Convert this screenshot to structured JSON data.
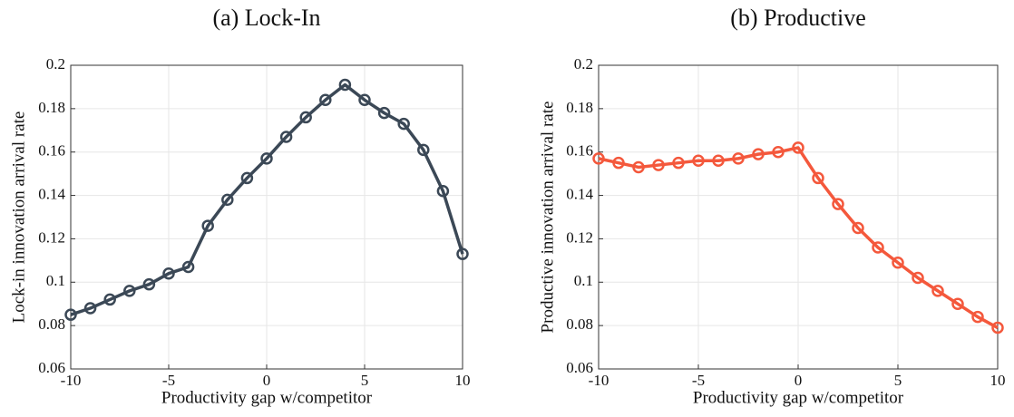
{
  "chart_data": [
    {
      "type": "line",
      "title": "(a) Lock-In",
      "xlabel": "Productivity gap w/competitor",
      "ylabel": "Lock-in innovation arrival rate",
      "x": [
        -10,
        -9,
        -8,
        -7,
        -6,
        -5,
        -4,
        -3,
        -2,
        -1,
        0,
        1,
        2,
        3,
        4,
        5,
        6,
        7,
        8,
        9,
        10
      ],
      "series": [
        {
          "color": "#3b4856",
          "values": [
            0.085,
            0.088,
            0.092,
            0.096,
            0.099,
            0.104,
            0.107,
            0.126,
            0.138,
            0.148,
            0.157,
            0.167,
            0.176,
            0.184,
            0.191,
            0.184,
            0.178,
            0.173,
            0.161,
            0.142,
            0.113
          ]
        }
      ],
      "xlim": [
        -10,
        10
      ],
      "ylim": [
        0.06,
        0.2
      ],
      "xticks": [
        -10,
        -5,
        0,
        5,
        10
      ],
      "yticks": [
        0.06,
        0.08,
        0.1,
        0.12,
        0.14,
        0.16,
        0.18,
        0.2
      ],
      "grid": true
    },
    {
      "type": "line",
      "title": "(b) Productive",
      "xlabel": "Productivity gap w/competitor",
      "ylabel": "Productive innovation arrival rate",
      "x": [
        -10,
        -9,
        -8,
        -7,
        -6,
        -5,
        -4,
        -3,
        -2,
        -1,
        0,
        1,
        2,
        3,
        4,
        5,
        6,
        7,
        8,
        9,
        10
      ],
      "series": [
        {
          "color": "#f4583c",
          "values": [
            0.157,
            0.155,
            0.153,
            0.154,
            0.155,
            0.156,
            0.156,
            0.157,
            0.159,
            0.16,
            0.162,
            0.148,
            0.136,
            0.125,
            0.116,
            0.109,
            0.102,
            0.096,
            0.09,
            0.084,
            0.079
          ]
        }
      ],
      "xlim": [
        -10,
        10
      ],
      "ylim": [
        0.06,
        0.2
      ],
      "xticks": [
        -10,
        -5,
        0,
        5,
        10
      ],
      "yticks": [
        0.06,
        0.08,
        0.1,
        0.12,
        0.14,
        0.16,
        0.18,
        0.2
      ],
      "grid": true
    }
  ]
}
